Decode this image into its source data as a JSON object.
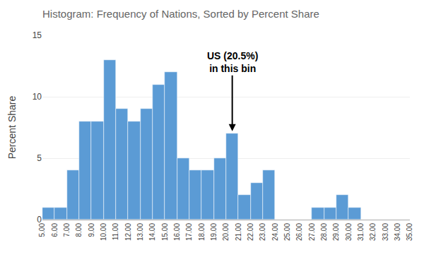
{
  "chart_data": {
    "type": "histogram",
    "title": "Histogram: Frequency of Nations, Sorted by Percent Share",
    "ylabel": "Percent Share",
    "color": "#5b9bd5",
    "bins": [
      5,
      6,
      7,
      8,
      9,
      10,
      11,
      12,
      13,
      14,
      15,
      16,
      17,
      18,
      19,
      20,
      21,
      22,
      23,
      24,
      25,
      26,
      27,
      28,
      29,
      30,
      31,
      32,
      33,
      34,
      35
    ],
    "values": [
      1,
      1,
      4,
      8,
      8,
      13,
      9,
      8,
      9,
      11,
      12,
      5,
      4,
      4,
      5,
      7,
      2,
      3,
      4,
      0,
      0,
      0,
      1,
      1,
      2,
      1,
      0,
      0,
      0,
      0
    ],
    "xlim": [
      5,
      35
    ],
    "xticks": [
      {
        "value": 5,
        "label": "5.00"
      },
      {
        "value": 6,
        "label": "6.00"
      },
      {
        "value": 7,
        "label": "7.00"
      },
      {
        "value": 8,
        "label": "8.00"
      },
      {
        "value": 9,
        "label": "9.00"
      },
      {
        "value": 10,
        "label": "10.00"
      },
      {
        "value": 11,
        "label": "11.00"
      },
      {
        "value": 12,
        "label": "12.00"
      },
      {
        "value": 13,
        "label": "13.00"
      },
      {
        "value": 14,
        "label": "14.00"
      },
      {
        "value": 15,
        "label": "15.00"
      },
      {
        "value": 16,
        "label": "16.00"
      },
      {
        "value": 17,
        "label": "17.00"
      },
      {
        "value": 18,
        "label": "18.00"
      },
      {
        "value": 19,
        "label": "19.00"
      },
      {
        "value": 20,
        "label": "20.00"
      },
      {
        "value": 21,
        "label": "21.00"
      },
      {
        "value": 22,
        "label": "22.00"
      },
      {
        "value": 23,
        "label": "23.00"
      },
      {
        "value": 24,
        "label": "24.00"
      },
      {
        "value": 25,
        "label": "25.00"
      },
      {
        "value": 26,
        "label": "26.00"
      },
      {
        "value": 27,
        "label": "27.00"
      },
      {
        "value": 28,
        "label": "28.00"
      },
      {
        "value": 29,
        "label": "29.00"
      },
      {
        "value": 30,
        "label": "30.00"
      },
      {
        "value": 31,
        "label": "31.00"
      },
      {
        "value": 32,
        "label": "32.00"
      },
      {
        "value": 33,
        "label": "33.00"
      },
      {
        "value": 34,
        "label": "34.00"
      },
      {
        "value": 35,
        "label": "35.00"
      }
    ],
    "ylim": [
      0,
      15
    ],
    "yticks": [
      0,
      5,
      10,
      15
    ],
    "grid": true,
    "annotations": [
      {
        "text": "US (20.5%)\nin this bin",
        "x": 20.5,
        "y": 7.2,
        "text_y": 12.8
      }
    ]
  }
}
